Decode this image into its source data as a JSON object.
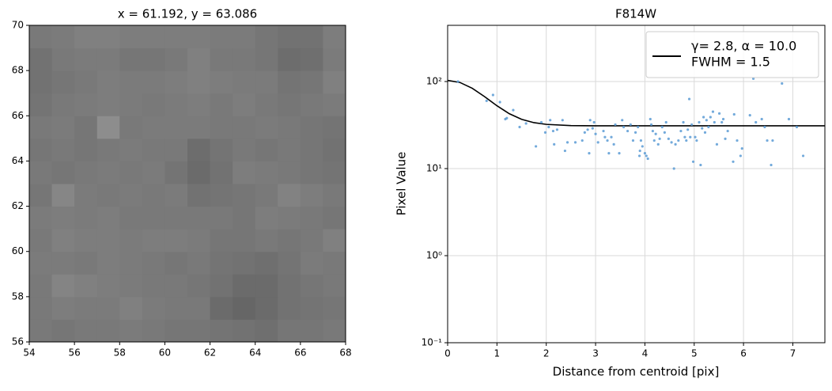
{
  "chart_data": [
    {
      "type": "image",
      "title": "x = 61.192, y = 63.086",
      "cmap": "gray",
      "origin": "lower",
      "vlim": [
        -30,
        80
      ],
      "xlim": [
        54,
        68
      ],
      "ylim": [
        56,
        70
      ],
      "xticks": [
        54,
        56,
        58,
        60,
        62,
        64,
        66,
        68
      ],
      "yticks": [
        56,
        58,
        60,
        62,
        64,
        66,
        68,
        70
      ],
      "values": [
        [
          22,
          21,
          22,
          22,
          23,
          22,
          21,
          21,
          20,
          19,
          18,
          21,
          21,
          22
        ],
        [
          22,
          24,
          23,
          23,
          25,
          23,
          22,
          22,
          16,
          14,
          16,
          19,
          20,
          21
        ],
        [
          22,
          27,
          25,
          24,
          23,
          22,
          22,
          21,
          19,
          16,
          16,
          19,
          21,
          22
        ],
        [
          23,
          23,
          22,
          24,
          23,
          22,
          21,
          22,
          20,
          19,
          18,
          20,
          23,
          22
        ],
        [
          22,
          25,
          24,
          24,
          23,
          24,
          24,
          23,
          21,
          21,
          22,
          21,
          22,
          25
        ],
        [
          23,
          24,
          23,
          24,
          22,
          22,
          22,
          22,
          22,
          21,
          24,
          23,
          22,
          21
        ],
        [
          21,
          28,
          23,
          22,
          23,
          22,
          23,
          19,
          20,
          21,
          22,
          26,
          24,
          22
        ],
        [
          22,
          21,
          22,
          23,
          22,
          23,
          20,
          16,
          19,
          24,
          23,
          22,
          21,
          20
        ],
        [
          21,
          22,
          21,
          22,
          23,
          22,
          22,
          17,
          20,
          22,
          21,
          22,
          21,
          19
        ],
        [
          22,
          23,
          21,
          31,
          22,
          23,
          23,
          23,
          22,
          22,
          23,
          22,
          21,
          20
        ],
        [
          20,
          22,
          23,
          24,
          23,
          22,
          23,
          24,
          22,
          24,
          22,
          21,
          22,
          23
        ],
        [
          19,
          21,
          22,
          24,
          23,
          23,
          24,
          25,
          24,
          23,
          23,
          20,
          21,
          25
        ],
        [
          19,
          22,
          23,
          23,
          21,
          21,
          22,
          25,
          22,
          22,
          21,
          17,
          18,
          23
        ],
        [
          22,
          23,
          25,
          25,
          24,
          24,
          24,
          24,
          23,
          23,
          21,
          19,
          19,
          24
        ]
      ]
    },
    {
      "type": "scatter",
      "title": "F814W",
      "x_label": "Distance from centroid [pix]",
      "y_label": "Pixel Value",
      "yscale": "log",
      "grid": true,
      "legend": "upper right",
      "xlim": [
        0,
        7.65
      ],
      "ylim": [
        0.1,
        442
      ],
      "xticks": [
        0,
        1,
        2,
        3,
        4,
        5,
        6,
        7
      ],
      "yticks": [
        {
          "value": 0.1,
          "label": "10⁻¹"
        },
        {
          "value": 1,
          "label": "10⁰"
        },
        {
          "value": 10,
          "label": "10¹"
        },
        {
          "value": 100,
          "label": "10²"
        }
      ],
      "series": [
        {
          "name": [
            "γ= 2.8, α = 10.0",
            "FWHM = 1.5"
          ],
          "kind": "line",
          "color": "#000000",
          "x": [
            0,
            0.25,
            0.5,
            0.75,
            1,
            1.25,
            1.5,
            1.75,
            2,
            2.5,
            3,
            4,
            5,
            6,
            7,
            7.65
          ],
          "values": [
            103,
            97.5,
            83.6,
            67,
            52.7,
            42.7,
            36.8,
            33.7,
            32.2,
            31.2,
            31,
            31,
            31,
            31,
            31,
            31
          ]
        },
        {
          "kind": "points",
          "color": "#5b9bd5",
          "x": [
            0.21,
            0.79,
            0.92,
            1.06,
            1.17,
            1.2,
            1.33,
            1.46,
            1.59,
            1.79,
            1.9,
            1.98,
            2.05,
            2.08,
            2.14,
            2.16,
            2.22,
            2.33,
            2.38,
            2.43,
            2.59,
            2.73,
            2.78,
            2.84,
            2.87,
            2.89,
            2.94,
            2.97,
            3.0,
            3.05,
            3.16,
            3.19,
            3.24,
            3.27,
            3.32,
            3.37,
            3.4,
            3.48,
            3.54,
            3.57,
            3.65,
            3.71,
            3.76,
            3.81,
            3.86,
            3.89,
            3.9,
            3.92,
            3.95,
            4.0,
            4.03,
            4.06,
            4.11,
            4.13,
            4.16,
            4.19,
            4.22,
            4.27,
            4.3,
            4.35,
            4.4,
            4.43,
            4.48,
            4.54,
            4.59,
            4.62,
            4.68,
            4.73,
            4.78,
            4.81,
            4.84,
            4.87,
            4.9,
            4.92,
            4.95,
            4.98,
            5.02,
            5.05,
            5.1,
            5.13,
            5.16,
            5.19,
            5.22,
            5.25,
            5.29,
            5.33,
            5.38,
            5.41,
            5.46,
            5.51,
            5.56,
            5.59,
            5.63,
            5.68,
            5.79,
            5.81,
            5.87,
            5.94,
            5.97,
            6.13,
            6.2,
            6.25,
            6.37,
            6.43,
            6.48,
            6.56,
            6.59,
            6.78,
            6.92,
            7.08,
            7.21
          ],
          "values": [
            100,
            60,
            70,
            58,
            37,
            38,
            47,
            30,
            33,
            18,
            34,
            26,
            30,
            36,
            27,
            19,
            28,
            36,
            16,
            20,
            20,
            21,
            26,
            28,
            15,
            36,
            29,
            34,
            25,
            20,
            27,
            23,
            21,
            15,
            23,
            19,
            32,
            15,
            36,
            30,
            27,
            32,
            21,
            26,
            30,
            14,
            16,
            21,
            18,
            15,
            14,
            13,
            37,
            32,
            27,
            21,
            25,
            19,
            22,
            30,
            26,
            34,
            22,
            20,
            10,
            19,
            21,
            27,
            34,
            23,
            21,
            28,
            63,
            23,
            32,
            12,
            23,
            21,
            34,
            11,
            29,
            39,
            26,
            36,
            30,
            39,
            45,
            34,
            19,
            43,
            34,
            37,
            22,
            27,
            12,
            42,
            21,
            14,
            17,
            41,
            108,
            34,
            37,
            30,
            21,
            11,
            21,
            95,
            37,
            30,
            14
          ]
        }
      ]
    }
  ]
}
